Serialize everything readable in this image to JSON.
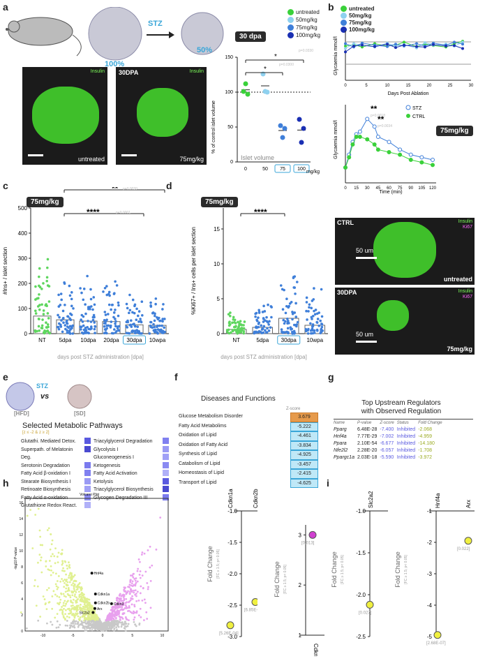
{
  "panels": {
    "a": "a",
    "b": "b",
    "c": "c",
    "d": "d",
    "e": "e",
    "f": "f",
    "g": "g",
    "h": "h",
    "i": "i"
  },
  "a": {
    "stz": "STZ",
    "pct_before": "100%",
    "pct_after": "50%",
    "dpa": "30 dpa",
    "img1_ins": "Insulin",
    "img1_lbl": "untreated",
    "img2_top": "30DPA",
    "img2_ins": "Insulin",
    "img2_lbl": "75mg/kg",
    "ylabel": "% of control islet volume",
    "legend": "Islet volume",
    "xunit": "mg/kg",
    "sig_outer": "*",
    "sig_inner": "*",
    "p_outer": "p=0.0330",
    "p_inner": "p=0.0300",
    "chart_data": {
      "type": "scatter",
      "categories": [
        "0",
        "50",
        "75",
        "100"
      ],
      "points": [
        [
          101,
          112,
          97
        ],
        [
          126,
          101,
          100
        ],
        [
          52,
          35,
          48
        ],
        [
          61,
          28,
          48
        ]
      ],
      "ylim": [
        0,
        150
      ],
      "yticks": [
        "0",
        "50",
        "100",
        "150"
      ],
      "colors": [
        "#3ad13a",
        "#8fd1ef",
        "#3f7fd9",
        "#1a2fb3"
      ]
    }
  },
  "b": {
    "legend": [
      "untreated",
      "50mg/kg",
      "75mg/kg",
      "100mg/kg"
    ],
    "legend_colors": [
      "#3ad13a",
      "#8fd1ef",
      "#3f7fd9",
      "#1a2fb3"
    ],
    "top_ylabel": "Glycaemia mmol/l",
    "top_xlabel": "Days Post Ablation",
    "top_xticks": [
      "0",
      "5",
      "10",
      "15",
      "20",
      "25",
      "30"
    ],
    "top_chart": {
      "type": "line",
      "x": [
        0,
        2,
        4,
        7,
        10,
        12,
        14,
        17,
        19,
        21,
        24,
        26,
        28
      ],
      "ylim": [
        0,
        10
      ],
      "series": [
        {
          "values": [
            7,
            7.3,
            6.8,
            7.5,
            7.0,
            7.2,
            7.8,
            6.9,
            7.4,
            7.1,
            6.8,
            7.5,
            8.0
          ]
        },
        {
          "values": [
            6.5,
            7.5,
            7.2,
            6.8,
            7.6,
            7.0,
            7.3,
            6.6,
            7.7,
            7.2,
            7.4,
            7.0,
            7.8
          ]
        },
        {
          "values": [
            7.5,
            6.8,
            7.6,
            7.2,
            6.9,
            7.4,
            7.0,
            7.5,
            7.0,
            7.6,
            7.2,
            7.8,
            7.4
          ]
        },
        {
          "values": [
            5.8,
            7.0,
            7.2,
            6.9,
            7.4,
            6.7,
            7.2,
            6.9,
            6.8,
            7.3,
            7.0,
            7.1,
            6.5
          ]
        }
      ]
    },
    "bot_ylabel": "Glycaemia mmol/l",
    "bot_xlabel": "Time (min)",
    "bot_xticks": [
      "0",
      "15",
      "30",
      "45",
      "60",
      "75",
      "90",
      "105",
      "120"
    ],
    "bot_legend": [
      "STZ",
      "CTRL"
    ],
    "bot_pill": "75mg/kg",
    "sig1": "**",
    "sig2": "**",
    "p1": "p=0.0018",
    "p2": "p=0.0034",
    "bot_chart": {
      "type": "line",
      "x": [
        0,
        5,
        10,
        15,
        20,
        30,
        40,
        45,
        60,
        75,
        90,
        105,
        120
      ],
      "series": [
        {
          "name": "STZ",
          "values": [
            6,
            11,
            16,
            19,
            20,
            25,
            22,
            18,
            16,
            13,
            11,
            10,
            9
          ]
        },
        {
          "name": "CTRL",
          "values": [
            6,
            10,
            15,
            18,
            18,
            17,
            15,
            13,
            12,
            11,
            9,
            8,
            7
          ]
        }
      ]
    }
  },
  "c": {
    "pill": "75mg/kg",
    "sig1": "**",
    "p1": "p=0.0020",
    "sig2": "****",
    "p2": "p<0.0001",
    "ylabel": "#Ins+ / islet section",
    "xlabel": "days post STZ administration [dpa]",
    "yticks": [
      "0",
      "100",
      "200",
      "300",
      "400",
      "500"
    ],
    "chart_data": {
      "type": "bar",
      "categories": [
        "NT",
        "5dpa",
        "10dpa",
        "20dpa",
        "30dpa",
        "10wpa"
      ],
      "values": [
        70,
        55,
        50,
        48,
        35,
        33
      ],
      "ylim": [
        0,
        500
      ]
    }
  },
  "d": {
    "pill": "75mg/kg",
    "sig": "****",
    "ylabel": "%Ki67+ / Ins+ cells per islet section",
    "xlabel": "days post STZ administration [dpa]",
    "yticks": [
      "0",
      "5",
      "10",
      "15"
    ],
    "chart_data": {
      "type": "bar",
      "categories": [
        "NT",
        "5dpa",
        "30dpa",
        "10wpa"
      ],
      "values": [
        0.6,
        0.9,
        2.2,
        1.2
      ],
      "ylim": [
        0,
        18
      ]
    },
    "img1_top": "CTRL",
    "img1_ins": "Insulin",
    "img1_ki": "Ki67",
    "img1_scale": "50 um",
    "img1_lbl": "untreated",
    "img2_top": "30DPA",
    "img2_ins": "Insulin",
    "img2_ki": "Ki67",
    "img2_scale": "50 um",
    "img2_lbl": "75mg/kg"
  },
  "e": {
    "stz": "STZ",
    "vs": "vs",
    "hfd": "[HFD]",
    "sd": "[SD]",
    "title": "Selected Metabolic Pathways",
    "subtitle": "[z ≤ -2 & z ≥ 2]",
    "left": [
      "Glutathi. Mediated Detox.",
      "Superpath. of Melatonin Deg.",
      "Serotonin Degradation",
      "Fatty Acid β-oxidation I",
      "Stearate Biosynthesis I",
      "Retinoate Biosynthesis",
      "Fatty Acid α-oxidation",
      "Glutathione Redox React."
    ],
    "right": [
      "Triacylglycerol Degradation",
      "Glycolysis I",
      "Gluconeogenesis I",
      "Ketogenesis",
      "Fatty Acid Activation",
      "Ketolysis",
      "Triacylglycerol Biosynthesis",
      "Glycogen Degradation III"
    ]
  },
  "f": {
    "title": "Diseases and Functions",
    "zhead": "Z-score",
    "rows": [
      {
        "name": "Glucose Metabolism Disorder",
        "z": "3.679"
      },
      {
        "name": "Fatty Acid Metabolims",
        "z": "-5.222"
      },
      {
        "name": "Oxidation of Lipid",
        "z": "-4.461"
      },
      {
        "name": "Oxidation of Fatty Acid",
        "z": "-3.834"
      },
      {
        "name": "Synthesis of Lipid",
        "z": "-4.925"
      },
      {
        "name": "Catabolism of Lipid",
        "z": "-3.457"
      },
      {
        "name": "Homeostasis of Lipid",
        "z": "-2.415"
      },
      {
        "name": "Transport of Lipid",
        "z": "-4.625"
      }
    ]
  },
  "g": {
    "title1": "Top Upstream Regulators",
    "title2": "with Observed Regulation",
    "heads": [
      "Name",
      "P-value",
      "Z-score",
      "Status",
      "Fold Change"
    ],
    "rows": [
      [
        "Pparg",
        "6.48E-28",
        "-7.400",
        "Inhibited",
        "-2.068"
      ],
      [
        "Hnf4a",
        "7.77E-29",
        "-7.002",
        "Inhibited",
        "-4.959"
      ],
      [
        "Ppara",
        "2.10E-54",
        "-6.677",
        "Inhibited",
        "-14.180"
      ],
      [
        "Nfe2l2",
        "2.28E-20",
        "-6.057",
        "Inhibited",
        "-1.708"
      ],
      [
        "Ppargc1a",
        "2.03E-18",
        "-5.590",
        "Inhibited",
        "-3.972"
      ]
    ]
  },
  "h": {
    "volcano_title": "Volcano Plot",
    "volcano_ylabel": "-log10 P-value",
    "volcano_yticks": [
      "0",
      "2",
      "4",
      "6",
      "8",
      "10",
      "12",
      "14",
      "16"
    ],
    "volcano_xticks": [
      "-10",
      "-5",
      "0",
      "5",
      "10"
    ],
    "genes": [
      "Hnf4a",
      "Cdkn1a",
      "Cdkn2b",
      "Cdkn3",
      "Arx",
      "Slc2a2"
    ],
    "fc_ylabel": "Fold Change",
    "fc_sub": "[FC ≥ 1.5; p< 0.05]",
    "p1_cols": [
      "Cdkn1a",
      "Cdkn2b"
    ],
    "p1_yticks": [
      "-1.0",
      "-1.5",
      "-2.0",
      "-2.5",
      "-3.0"
    ],
    "p1_labels": [
      "[5.26E-04]",
      "[6.85E-03]"
    ],
    "p1_chart": {
      "type": "scatter",
      "x": [
        "Cdkn1a",
        "Cdkn2b"
      ],
      "values": [
        -2.82,
        -2.45
      ],
      "ylim": [
        -3.0,
        -1.0
      ]
    },
    "p2_col": "Cdkn3",
    "p2_yticks": [
      "3",
      "2",
      "1"
    ],
    "p2_label": "[0.013]",
    "p2_chart": {
      "type": "scatter",
      "x": [
        "Cdkn3"
      ],
      "values": [
        3.0
      ],
      "ylim": [
        1,
        3.2
      ]
    }
  },
  "i": {
    "fc_ylabel": "Fold Change",
    "fc_sub": "[FC ≥ 1.5; p< 0.05]",
    "p1_col": "Slc2a2",
    "p1_yticks": [
      "-1.0",
      "-1.5",
      "-2.0",
      "-2.5"
    ],
    "p1_label": "[0.027]",
    "p1_chart": {
      "type": "scatter",
      "x": [
        "Slc2a2"
      ],
      "values": [
        -2.12
      ],
      "ylim": [
        -2.5,
        -1.0
      ]
    },
    "p2_cols": [
      "Hnf4a",
      "Arx"
    ],
    "p2_yticks": [
      "-1",
      "-2",
      "-3",
      "-4",
      "-5"
    ],
    "p2_labels": [
      "[2.68E-07]",
      "[0.022]"
    ],
    "p2_chart": {
      "type": "scatter",
      "x": [
        "Hnf4a",
        "Arx"
      ],
      "values": [
        -4.95,
        -1.95
      ],
      "ylim": [
        -5,
        -1
      ]
    }
  }
}
